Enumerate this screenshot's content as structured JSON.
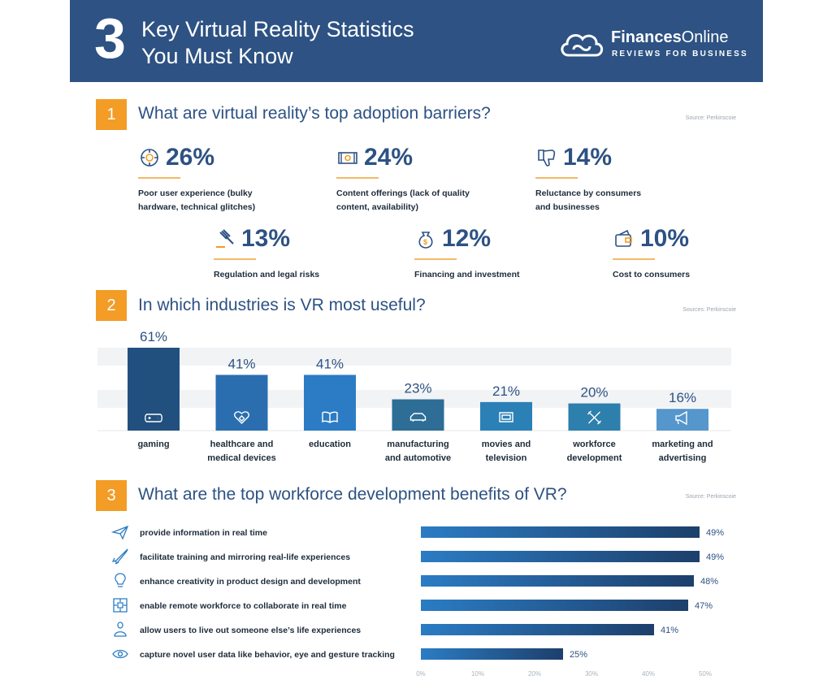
{
  "header": {
    "number": "3",
    "title_line1": "Key Virtual Reality Statistics",
    "title_line2": "You Must Know",
    "brand_name_part1": "Finances",
    "brand_name_part2": "Online",
    "brand_tagline": "REVIEWS FOR BUSINESS"
  },
  "section1": {
    "number": "1",
    "title": "What are virtual reality’s top adoption barriers?",
    "source": "Source: Perkinscoie",
    "stats": [
      {
        "pct": "26%",
        "desc": "Poor user experience (bulky hardware, technical glitches)",
        "icon": "vr-headset-icon"
      },
      {
        "pct": "24%",
        "desc": "Content offerings (lack of quality content, availability)",
        "icon": "film-icon"
      },
      {
        "pct": "14%",
        "desc": "Reluctance by consumers and businesses",
        "icon": "thumbs-down-icon"
      },
      {
        "pct": "13%",
        "desc": "Regulation and legal risks",
        "icon": "gavel-icon"
      },
      {
        "pct": "12%",
        "desc": "Financing and investment",
        "icon": "money-bag-icon"
      },
      {
        "pct": "10%",
        "desc": "Cost to consumers",
        "icon": "wallet-icon"
      }
    ]
  },
  "section2": {
    "number": "2",
    "title": "In which industries is VR most useful?",
    "source": "Sources: Perkinscoie"
  },
  "section3": {
    "number": "3",
    "title": "What are the top workforce development benefits of VR?",
    "source": "Source: Perkinscoie"
  },
  "chart_data": [
    {
      "type": "bar",
      "title": "In which industries is VR most useful?",
      "categories": [
        "gaming",
        "healthcare and medical devices",
        "education",
        "manufacturing and automotive",
        "movies and television",
        "workforce development",
        "marketing and advertising"
      ],
      "category_lines": [
        [
          "gaming"
        ],
        [
          "healthcare and",
          "medical devices"
        ],
        [
          "education"
        ],
        [
          "manufacturing",
          "and automotive"
        ],
        [
          "movies and",
          "television"
        ],
        [
          "workforce",
          "development"
        ],
        [
          "marketing and",
          "advertising"
        ]
      ],
      "values": [
        61,
        41,
        41,
        23,
        21,
        20,
        16
      ],
      "value_labels": [
        "61%",
        "41%",
        "41%",
        "23%",
        "21%",
        "20%",
        "16%"
      ],
      "icons": [
        "gamepad-icon",
        "heart-health-icon",
        "book-icon",
        "car-icon",
        "tv-icon",
        "tools-icon",
        "megaphone-icon"
      ],
      "colors": [
        "#21507f",
        "#2a6eb0",
        "#2b7cc4",
        "#2d6d96",
        "#2b80b6",
        "#2d7fae",
        "#5596cc"
      ],
      "ylim": [
        0,
        61
      ]
    },
    {
      "type": "bar",
      "orientation": "horizontal",
      "title": "What are the top workforce development benefits of VR?",
      "categories": [
        "provide information in real time",
        "facilitate training and mirroring real-life experiences",
        "enhance creativity in product design and development",
        "enable remote workforce to collaborate in real time",
        "allow users to live out someone else’s life experiences",
        "capture novel user data like behavior, eye and gesture tracking"
      ],
      "values": [
        49,
        49,
        48,
        47,
        41,
        25
      ],
      "value_labels": [
        "49%",
        "49%",
        "48%",
        "47%",
        "41%",
        "25%"
      ],
      "icons": [
        "paper-plane-icon",
        "rocket-icon",
        "lightbulb-icon",
        "network-icon",
        "person-icon",
        "eye-icon"
      ],
      "x_ticks": [
        "0%",
        "10%",
        "20%",
        "30%",
        "40%",
        "50%"
      ],
      "xlim": [
        0,
        50
      ],
      "colors": {
        "bar_start": "#2b7cc4",
        "bar_end": "#1d3f6b"
      }
    }
  ]
}
